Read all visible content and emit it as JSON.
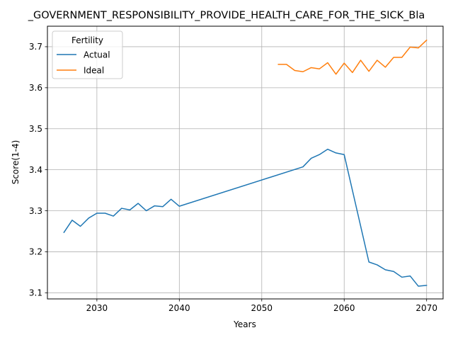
{
  "chart_data": {
    "type": "line",
    "title": "_GOVERNMENT_RESPONSIBILITY_PROVIDE_HEALTH_CARE_FOR_THE_SICK_Bla",
    "xlabel": "Years",
    "ylabel": "Score(1-4)",
    "xlim": [
      2024,
      2072
    ],
    "ylim": [
      3.085,
      3.75
    ],
    "xticks": [
      2030,
      2040,
      2050,
      2060,
      2070
    ],
    "yticks": [
      3.1,
      3.2,
      3.3,
      3.4,
      3.5,
      3.6,
      3.7
    ],
    "grid": true,
    "legend": {
      "title": "Fertility",
      "placement": "upper-left"
    },
    "series": [
      {
        "name": "Actual",
        "color": "#1f77b4",
        "x": [
          2026,
          2027,
          2028,
          2029,
          2030,
          2031,
          2032,
          2033,
          2034,
          2035,
          2036,
          2037,
          2038,
          2039,
          2040,
          2055,
          2056,
          2057,
          2058,
          2059,
          2060,
          2063,
          2064,
          2065,
          2066,
          2067,
          2068,
          2069,
          2070
        ],
        "y": [
          3.247,
          3.277,
          3.262,
          3.282,
          3.294,
          3.294,
          3.287,
          3.306,
          3.302,
          3.318,
          3.3,
          3.312,
          3.31,
          3.328,
          3.311,
          3.407,
          3.428,
          3.437,
          3.45,
          3.441,
          3.437,
          3.175,
          3.168,
          3.156,
          3.152,
          3.138,
          3.141,
          3.116,
          3.118
        ]
      },
      {
        "name": "Ideal",
        "color": "#ff7f0e",
        "x": [
          2052,
          2053,
          2054,
          2055,
          2056,
          2057,
          2058,
          2059,
          2060,
          2061,
          2062,
          2063,
          2064,
          2065,
          2066,
          2067,
          2068,
          2069,
          2070
        ],
        "y": [
          3.657,
          3.657,
          3.642,
          3.639,
          3.649,
          3.646,
          3.661,
          3.633,
          3.66,
          3.637,
          3.667,
          3.64,
          3.667,
          3.65,
          3.674,
          3.674,
          3.699,
          3.697,
          3.716
        ]
      }
    ]
  }
}
